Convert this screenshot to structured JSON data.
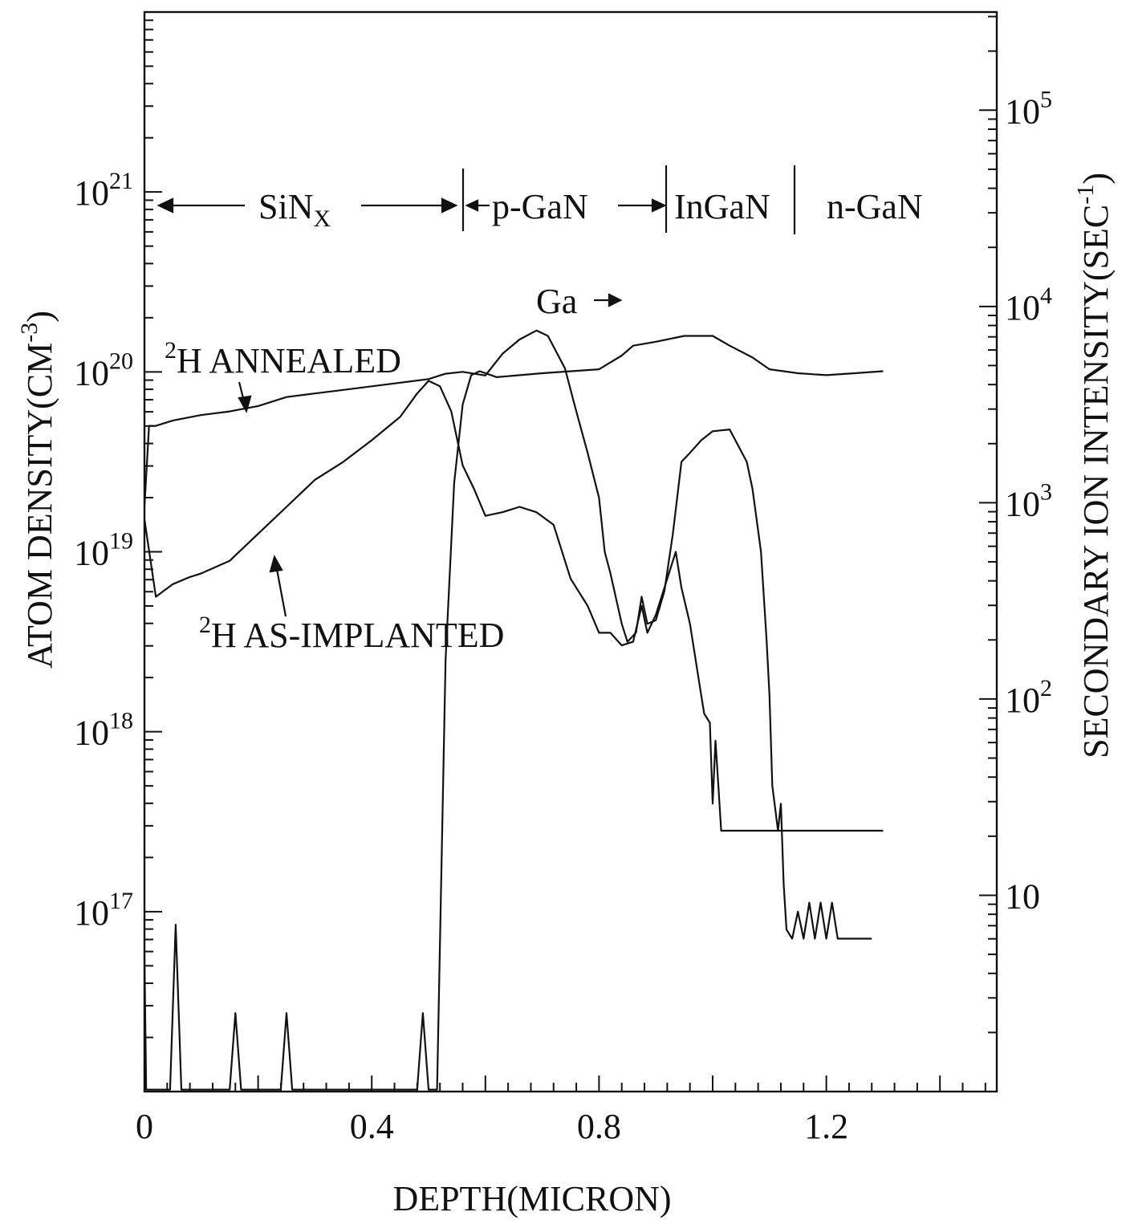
{
  "chart_data": {
    "type": "line",
    "xlabel": "DEPTH(MICRON)",
    "ylabel_left": "ATOM DENSITY(CM",
    "ylabel_left_exp": "-3",
    "ylabel_left_close": ")",
    "ylabel_right": "SECONDARY ION INTENSITY(SEC",
    "ylabel_right_exp": "-1",
    "ylabel_right_close": ")",
    "xlim": [
      0,
      1.5
    ],
    "xticks": [
      {
        "value": 0,
        "label": "0"
      },
      {
        "value": 0.4,
        "label": "0.4"
      },
      {
        "value": 0.8,
        "label": "0.8"
      },
      {
        "value": 1.2,
        "label": "1.2"
      }
    ],
    "ylim_left_log10": [
      16,
      22
    ],
    "yticks_left": [
      {
        "exp": 17,
        "base": "10",
        "sup": "17"
      },
      {
        "exp": 18,
        "base": "10",
        "sup": "18"
      },
      {
        "exp": 19,
        "base": "10",
        "sup": "19"
      },
      {
        "exp": 20,
        "base": "10",
        "sup": "20"
      },
      {
        "exp": 21,
        "base": "10",
        "sup": "21"
      }
    ],
    "ylim_right_log10": [
      0.0,
      5.5
    ],
    "yticks_right": [
      {
        "exp": 1,
        "label": "10"
      },
      {
        "exp": 2,
        "base": "10",
        "sup": "2"
      },
      {
        "exp": 3,
        "base": "10",
        "sup": "3"
      },
      {
        "exp": 4,
        "base": "10",
        "sup": "4"
      },
      {
        "exp": 5,
        "base": "10",
        "sup": "5"
      }
    ],
    "layers": [
      {
        "label": "SiN",
        "sub": "X"
      },
      {
        "label": "p-GaN"
      },
      {
        "label": "InGaN"
      },
      {
        "label": "n-GaN"
      }
    ],
    "layer_boundaries": [
      0.54,
      0.9,
      1.13
    ],
    "annotations": [
      {
        "sup": "2",
        "text": "H ANNEALED"
      },
      {
        "sup": "2",
        "text": "H AS-IMPLANTED"
      },
      {
        "text": "Ga"
      }
    ],
    "series": [
      {
        "axis": "left",
        "points": [
          [
            0,
            19.25
          ],
          [
            0.008,
            19.7
          ],
          [
            0.02,
            19.7
          ],
          [
            0.05,
            19.73
          ],
          [
            0.1,
            19.76
          ],
          [
            0.15,
            19.78
          ],
          [
            0.2,
            19.81
          ],
          [
            0.25,
            19.86
          ],
          [
            0.3,
            19.88
          ],
          [
            0.35,
            19.9
          ],
          [
            0.4,
            19.92
          ],
          [
            0.45,
            19.94
          ],
          [
            0.5,
            19.96
          ],
          [
            0.53,
            19.99
          ],
          [
            0.56,
            20.0
          ],
          [
            0.6,
            19.98
          ],
          [
            0.63,
            20.1
          ],
          [
            0.66,
            20.18
          ],
          [
            0.69,
            20.23
          ],
          [
            0.71,
            20.2
          ],
          [
            0.74,
            20.02
          ],
          [
            0.76,
            19.78
          ],
          [
            0.78,
            19.55
          ],
          [
            0.8,
            19.3
          ],
          [
            0.81,
            19.0
          ],
          [
            0.82,
            18.88
          ],
          [
            0.84,
            18.6
          ],
          [
            0.85,
            18.5
          ],
          [
            0.865,
            18.55
          ],
          [
            0.875,
            18.75
          ],
          [
            0.885,
            18.6
          ],
          [
            0.9,
            18.62
          ],
          [
            0.915,
            18.78
          ],
          [
            0.93,
            19.1
          ],
          [
            0.945,
            19.5
          ],
          [
            0.96,
            19.55
          ],
          [
            0.98,
            19.62
          ],
          [
            1.0,
            19.67
          ],
          [
            1.03,
            19.68
          ],
          [
            1.06,
            19.5
          ],
          [
            1.07,
            19.35
          ],
          [
            1.085,
            19.0
          ],
          [
            1.095,
            18.5
          ],
          [
            1.1,
            18.2
          ],
          [
            1.105,
            17.7
          ],
          [
            1.115,
            17.45
          ],
          [
            1.12,
            17.6
          ],
          [
            1.125,
            17.15
          ],
          [
            1.13,
            16.9
          ],
          [
            1.14,
            16.85
          ],
          [
            1.15,
            17.0
          ],
          [
            1.16,
            16.85
          ],
          [
            1.17,
            17.05
          ],
          [
            1.18,
            16.85
          ],
          [
            1.19,
            17.05
          ],
          [
            1.2,
            16.85
          ],
          [
            1.21,
            17.05
          ],
          [
            1.22,
            16.85
          ],
          [
            1.28,
            16.85
          ]
        ]
      },
      {
        "axis": "left",
        "points": [
          [
            0,
            19.18
          ],
          [
            0.02,
            18.75
          ],
          [
            0.05,
            18.82
          ],
          [
            0.08,
            18.86
          ],
          [
            0.1,
            18.88
          ],
          [
            0.15,
            18.95
          ],
          [
            0.2,
            19.1
          ],
          [
            0.25,
            19.25
          ],
          [
            0.3,
            19.4
          ],
          [
            0.35,
            19.5
          ],
          [
            0.4,
            19.62
          ],
          [
            0.45,
            19.75
          ],
          [
            0.48,
            19.88
          ],
          [
            0.5,
            19.95
          ],
          [
            0.52,
            19.92
          ],
          [
            0.54,
            19.78
          ],
          [
            0.56,
            19.48
          ],
          [
            0.58,
            19.35
          ],
          [
            0.6,
            19.2
          ],
          [
            0.63,
            19.22
          ],
          [
            0.66,
            19.25
          ],
          [
            0.69,
            19.22
          ],
          [
            0.72,
            19.15
          ],
          [
            0.75,
            18.85
          ],
          [
            0.78,
            18.7
          ],
          [
            0.8,
            18.55
          ],
          [
            0.82,
            18.55
          ],
          [
            0.84,
            18.48
          ],
          [
            0.86,
            18.5
          ],
          [
            0.875,
            18.7
          ],
          [
            0.885,
            18.55
          ],
          [
            0.9,
            18.65
          ],
          [
            0.92,
            18.85
          ],
          [
            0.935,
            19.0
          ],
          [
            0.945,
            18.8
          ],
          [
            0.96,
            18.6
          ],
          [
            0.975,
            18.3
          ],
          [
            0.985,
            18.1
          ],
          [
            0.995,
            18.05
          ],
          [
            1.0,
            17.6
          ],
          [
            1.005,
            17.95
          ],
          [
            1.01,
            17.7
          ],
          [
            1.015,
            17.45
          ],
          [
            1.3,
            17.45
          ]
        ]
      },
      {
        "axis": "right",
        "points": [
          [
            0,
            0.7
          ],
          [
            0.003,
            0.01
          ],
          [
            0.045,
            0.01
          ],
          [
            0.055,
            0.85
          ],
          [
            0.065,
            0.01
          ],
          [
            0.15,
            0.01
          ],
          [
            0.16,
            0.4
          ],
          [
            0.17,
            0.01
          ],
          [
            0.24,
            0.01
          ],
          [
            0.25,
            0.4
          ],
          [
            0.26,
            0.01
          ],
          [
            0.48,
            0.01
          ],
          [
            0.49,
            0.4
          ],
          [
            0.5,
            0.01
          ],
          [
            0.515,
            0.01
          ],
          [
            0.53,
            2.2
          ],
          [
            0.545,
            3.1
          ],
          [
            0.56,
            3.5
          ],
          [
            0.575,
            3.65
          ],
          [
            0.59,
            3.67
          ],
          [
            0.62,
            3.64
          ],
          [
            0.7,
            3.66
          ],
          [
            0.8,
            3.68
          ],
          [
            0.84,
            3.75
          ],
          [
            0.86,
            3.8
          ],
          [
            0.9,
            3.82
          ],
          [
            0.95,
            3.85
          ],
          [
            1.0,
            3.85
          ],
          [
            1.03,
            3.8
          ],
          [
            1.07,
            3.74
          ],
          [
            1.1,
            3.68
          ],
          [
            1.15,
            3.66
          ],
          [
            1.2,
            3.65
          ],
          [
            1.25,
            3.66
          ],
          [
            1.3,
            3.67
          ]
        ]
      }
    ]
  }
}
